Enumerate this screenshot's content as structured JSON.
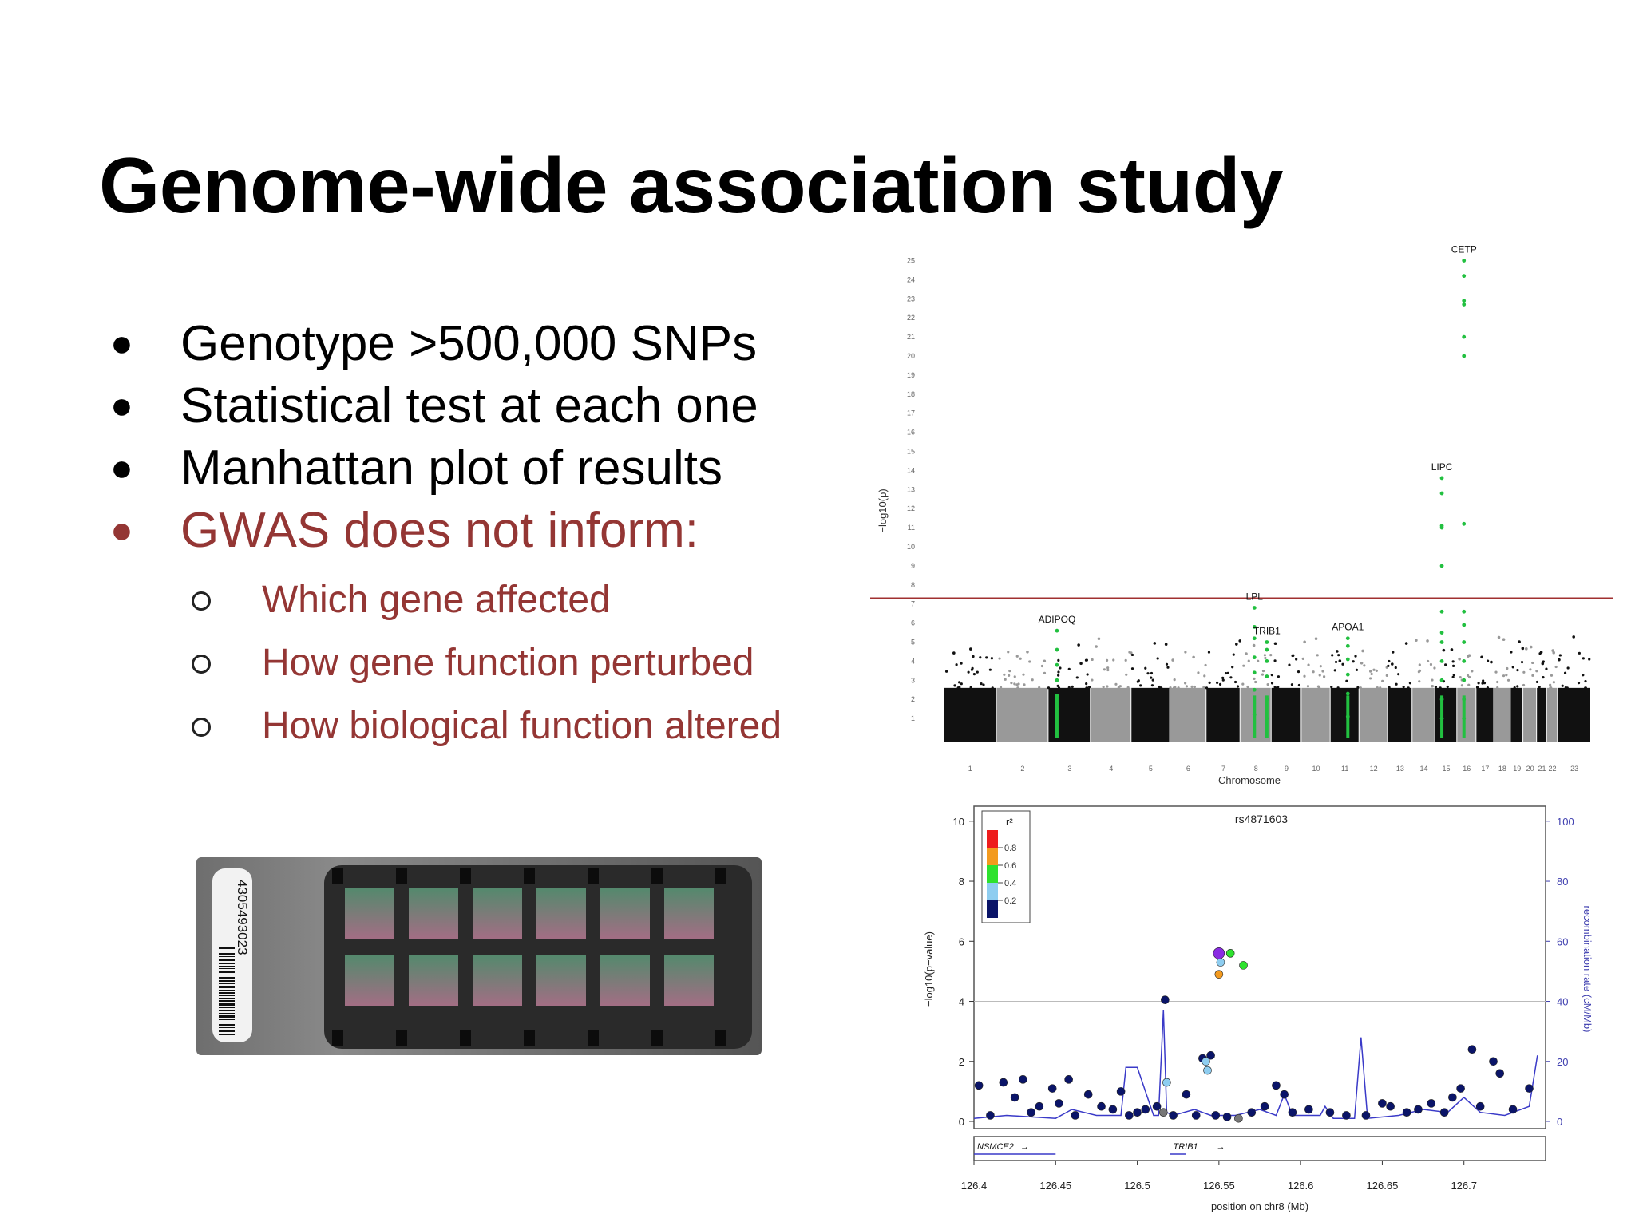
{
  "slide": {
    "title": "Genome-wide association study",
    "bullets": [
      {
        "text": "Genotype >500,000 SNPs",
        "accent": false
      },
      {
        "text": "Statistical test at each one",
        "accent": false
      },
      {
        "text": "Manhattan plot of results",
        "accent": false
      },
      {
        "text": "GWAS does not inform:",
        "accent": true
      }
    ],
    "sub_bullets": [
      "Which gene affected",
      "How gene function perturbed",
      "How biological function altered"
    ],
    "bullet_glyph": "●",
    "accent_color": "#943634",
    "chip": {
      "barcode": "4305493023",
      "icon": "snp-array-chip"
    }
  },
  "chart_data": [
    {
      "type": "scatter",
      "name": "manhattan",
      "ylabel": "−log10(p)",
      "xlabel": "Chromosome",
      "yticks": [
        1,
        2,
        3,
        4,
        5,
        6,
        7,
        8,
        9,
        10,
        11,
        12,
        13,
        14,
        15,
        16,
        17,
        18,
        19,
        20,
        21,
        22,
        23,
        24,
        25
      ],
      "ylim": [
        0,
        26
      ],
      "significance_threshold": 7.3,
      "threshold_color": "#a03030",
      "chromosomes": [
        "1",
        "2",
        "3",
        "4",
        "5",
        "6",
        "7",
        "8",
        "9",
        "10",
        "11",
        "12",
        "13",
        "14",
        "15",
        "16",
        "17",
        "18",
        "19",
        "20",
        "21",
        "22",
        "23"
      ],
      "chromosome_colors": [
        "#111111",
        "#999999"
      ],
      "highlight_color": "#22c040",
      "genes": [
        {
          "label": "ADIPOQ",
          "chromosome": "3",
          "peak": 5.6,
          "hits": [
            1.5,
            2.2,
            3.0,
            3.8,
            4.6,
            5.6
          ]
        },
        {
          "label": "LPL",
          "chromosome": "8",
          "peak": 6.8,
          "hits": [
            1.2,
            2.5,
            3.4,
            4.2,
            5.2,
            5.8,
            6.8
          ]
        },
        {
          "label": "TRIB1",
          "chromosome": "8",
          "peak": 5.0,
          "hits": [
            1.0,
            2.0,
            3.2,
            4.0,
            4.6,
            5.0
          ]
        },
        {
          "label": "APOA1",
          "chromosome": "11",
          "peak": 5.2,
          "hits": [
            1.1,
            2.3,
            3.3,
            4.1,
            4.8,
            5.2
          ]
        },
        {
          "label": "LIPC",
          "chromosome": "15",
          "peak": 13.6,
          "hits": [
            1.0,
            2.0,
            3.0,
            4.0,
            5.0,
            5.5,
            6.6,
            9.0,
            11.0,
            11.1,
            12.8,
            13.6
          ]
        },
        {
          "label": "CETP",
          "chromosome": "16",
          "peak": 25.0,
          "hits": [
            1.0,
            2.0,
            3.0,
            4.0,
            5.0,
            5.9,
            6.6,
            11.2,
            20.0,
            21.0,
            22.7,
            22.9,
            24.2,
            25.0
          ]
        }
      ]
    },
    {
      "type": "scatter",
      "name": "regional-association",
      "title": "rs4871603",
      "xlabel": "position on chr8 (Mb)",
      "ylabel": "−log10(p−value)",
      "y2label": "recombination rate (cM/Mb)",
      "xlim": [
        126.4,
        126.75
      ],
      "xticks": [
        "126.4",
        "126.45",
        "126.5",
        "126.55",
        "126.6",
        "126.65",
        "126.7"
      ],
      "ylim": [
        0,
        10
      ],
      "yticks": [
        "0",
        "2",
        "4",
        "6",
        "8",
        "10"
      ],
      "y2ticks": [
        "0",
        "20",
        "40",
        "60",
        "80",
        "100"
      ],
      "hline": 4,
      "legend": {
        "title": "r²",
        "ticks": [
          "0.8",
          "0.6",
          "0.4",
          "0.2"
        ],
        "colors": [
          "#ee1c1c",
          "#f39a1e",
          "#2ee22e",
          "#8ecdf0",
          "#0a1468"
        ]
      },
      "lead_snp": {
        "x": 126.55,
        "y": 5.6,
        "color": "#8a2be2"
      },
      "points": [
        {
          "x": 126.551,
          "y": 5.3,
          "c": "#8ecdf0"
        },
        {
          "x": 126.55,
          "y": 4.9,
          "c": "#f39a1e"
        },
        {
          "x": 126.557,
          "y": 5.6,
          "c": "#2ee22e"
        },
        {
          "x": 126.565,
          "y": 5.2,
          "c": "#2ee22e"
        },
        {
          "x": 126.517,
          "y": 4.05,
          "c": "#0a1468"
        },
        {
          "x": 126.518,
          "y": 1.3,
          "c": "#8ecdf0"
        },
        {
          "x": 126.54,
          "y": 2.1,
          "c": "#0a1468"
        },
        {
          "x": 126.542,
          "y": 2.0,
          "c": "#8ecdf0"
        },
        {
          "x": 126.543,
          "y": 1.7,
          "c": "#8ecdf0"
        },
        {
          "x": 126.545,
          "y": 2.2,
          "c": "#0a1468"
        },
        {
          "x": 126.403,
          "y": 1.2,
          "c": "#0a1468"
        },
        {
          "x": 126.41,
          "y": 0.2,
          "c": "#0a1468"
        },
        {
          "x": 126.418,
          "y": 1.3,
          "c": "#0a1468"
        },
        {
          "x": 126.425,
          "y": 0.8,
          "c": "#0a1468"
        },
        {
          "x": 126.43,
          "y": 1.4,
          "c": "#0a1468"
        },
        {
          "x": 126.435,
          "y": 0.3,
          "c": "#0a1468"
        },
        {
          "x": 126.44,
          "y": 0.5,
          "c": "#0a1468"
        },
        {
          "x": 126.448,
          "y": 1.1,
          "c": "#0a1468"
        },
        {
          "x": 126.452,
          "y": 0.6,
          "c": "#0a1468"
        },
        {
          "x": 126.458,
          "y": 1.4,
          "c": "#0a1468"
        },
        {
          "x": 126.462,
          "y": 0.2,
          "c": "#0a1468"
        },
        {
          "x": 126.47,
          "y": 0.9,
          "c": "#0a1468"
        },
        {
          "x": 126.478,
          "y": 0.5,
          "c": "#0a1468"
        },
        {
          "x": 126.485,
          "y": 0.4,
          "c": "#0a1468"
        },
        {
          "x": 126.49,
          "y": 1.0,
          "c": "#0a1468"
        },
        {
          "x": 126.495,
          "y": 0.2,
          "c": "#0a1468"
        },
        {
          "x": 126.5,
          "y": 0.3,
          "c": "#0a1468"
        },
        {
          "x": 126.505,
          "y": 0.4,
          "c": "#0a1468"
        },
        {
          "x": 126.512,
          "y": 0.5,
          "c": "#0a1468"
        },
        {
          "x": 126.516,
          "y": 0.3,
          "c": "#777777"
        },
        {
          "x": 126.522,
          "y": 0.2,
          "c": "#0a1468"
        },
        {
          "x": 126.53,
          "y": 0.9,
          "c": "#0a1468"
        },
        {
          "x": 126.536,
          "y": 0.2,
          "c": "#0a1468"
        },
        {
          "x": 126.548,
          "y": 0.2,
          "c": "#0a1468"
        },
        {
          "x": 126.555,
          "y": 0.15,
          "c": "#0a1468"
        },
        {
          "x": 126.562,
          "y": 0.1,
          "c": "#777777"
        },
        {
          "x": 126.57,
          "y": 0.3,
          "c": "#0a1468"
        },
        {
          "x": 126.578,
          "y": 0.5,
          "c": "#0a1468"
        },
        {
          "x": 126.585,
          "y": 1.2,
          "c": "#0a1468"
        },
        {
          "x": 126.59,
          "y": 0.9,
          "c": "#0a1468"
        },
        {
          "x": 126.595,
          "y": 0.3,
          "c": "#0a1468"
        },
        {
          "x": 126.605,
          "y": 0.4,
          "c": "#0a1468"
        },
        {
          "x": 126.618,
          "y": 0.3,
          "c": "#0a1468"
        },
        {
          "x": 126.628,
          "y": 0.2,
          "c": "#0a1468"
        },
        {
          "x": 126.64,
          "y": 0.2,
          "c": "#0a1468"
        },
        {
          "x": 126.65,
          "y": 0.6,
          "c": "#0a1468"
        },
        {
          "x": 126.655,
          "y": 0.5,
          "c": "#0a1468"
        },
        {
          "x": 126.665,
          "y": 0.3,
          "c": "#0a1468"
        },
        {
          "x": 126.672,
          "y": 0.4,
          "c": "#0a1468"
        },
        {
          "x": 126.68,
          "y": 0.6,
          "c": "#0a1468"
        },
        {
          "x": 126.688,
          "y": 0.3,
          "c": "#0a1468"
        },
        {
          "x": 126.693,
          "y": 0.8,
          "c": "#0a1468"
        },
        {
          "x": 126.698,
          "y": 1.1,
          "c": "#0a1468"
        },
        {
          "x": 126.705,
          "y": 2.4,
          "c": "#0a1468"
        },
        {
          "x": 126.71,
          "y": 0.5,
          "c": "#0a1468"
        },
        {
          "x": 126.718,
          "y": 2.0,
          "c": "#0a1468"
        },
        {
          "x": 126.722,
          "y": 1.6,
          "c": "#0a1468"
        },
        {
          "x": 126.73,
          "y": 0.4,
          "c": "#0a1468"
        },
        {
          "x": 126.74,
          "y": 1.1,
          "c": "#0a1468"
        }
      ],
      "recombination": [
        [
          126.4,
          0.1
        ],
        [
          126.42,
          0.2
        ],
        [
          126.45,
          0.1
        ],
        [
          126.46,
          0.4
        ],
        [
          126.475,
          0.2
        ],
        [
          126.49,
          0.2
        ],
        [
          126.493,
          1.8
        ],
        [
          126.5,
          1.8
        ],
        [
          126.505,
          1.0
        ],
        [
          126.51,
          0.2
        ],
        [
          126.513,
          0.2
        ],
        [
          126.516,
          3.7
        ],
        [
          126.518,
          0.3
        ],
        [
          126.522,
          0.2
        ],
        [
          126.535,
          0.4
        ],
        [
          126.545,
          0.2
        ],
        [
          126.56,
          0.2
        ],
        [
          126.575,
          0.4
        ],
        [
          126.585,
          0.2
        ],
        [
          126.59,
          0.9
        ],
        [
          126.595,
          0.2
        ],
        [
          126.612,
          0.2
        ],
        [
          126.615,
          0.5
        ],
        [
          126.62,
          0.1
        ],
        [
          126.633,
          0.1
        ],
        [
          126.637,
          2.8
        ],
        [
          126.641,
          0.1
        ],
        [
          126.66,
          0.2
        ],
        [
          126.675,
          0.4
        ],
        [
          126.69,
          0.3
        ],
        [
          126.7,
          0.8
        ],
        [
          126.71,
          0.3
        ],
        [
          126.725,
          0.2
        ],
        [
          126.74,
          0.5
        ],
        [
          126.745,
          2.2
        ]
      ],
      "genes": [
        {
          "label": "NSMCE2",
          "start": 126.4,
          "end": 126.45
        },
        {
          "label": "TRIB1",
          "start": 126.52,
          "end": 126.53
        }
      ]
    }
  ]
}
